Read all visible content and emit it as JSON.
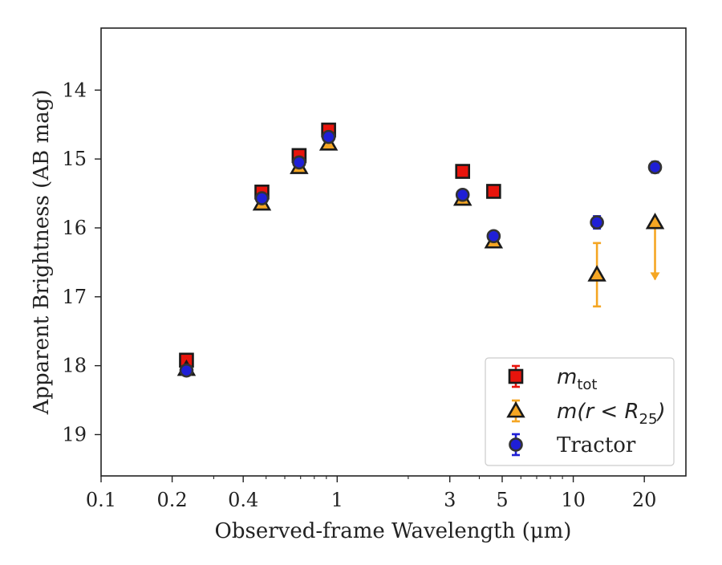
{
  "chart_data": {
    "type": "scatter",
    "title": "",
    "xlabel": "Observed-frame Wavelength (μm)",
    "ylabel": "Apparent Brightness (AB mag)",
    "x_scale": "log",
    "xlim": [
      0.1,
      30
    ],
    "ylim": [
      19.6,
      13.1
    ],
    "y_inverted": true,
    "x_ticks": [
      0.1,
      0.2,
      0.4,
      1,
      3,
      5,
      10,
      20
    ],
    "x_tick_labels": [
      "0.1",
      "0.2",
      "0.4",
      "1",
      "3",
      "5",
      "10",
      "20"
    ],
    "y_ticks": [
      14,
      15,
      16,
      17,
      18,
      19
    ],
    "y_tick_labels": [
      "14",
      "15",
      "16",
      "17",
      "18",
      "19"
    ],
    "grid": false,
    "legend_position": "lower-right",
    "series": [
      {
        "name": "m_tot",
        "legend_main": "m",
        "legend_sub": "tot",
        "marker": "square",
        "color": "#e8140c",
        "edge_color": "#1a1a1a",
        "errorbar_color": "#e8140c",
        "points": [
          {
            "x": 0.23,
            "y": 17.92,
            "err": 0.05
          },
          {
            "x": 0.48,
            "y": 15.48,
            "err": 0.04
          },
          {
            "x": 0.69,
            "y": 14.95,
            "err": 0.04
          },
          {
            "x": 0.92,
            "y": 14.58,
            "err": 0.04
          },
          {
            "x": 3.4,
            "y": 15.18,
            "err": 0.04
          },
          {
            "x": 4.6,
            "y": 15.47,
            "err": 0.04
          }
        ]
      },
      {
        "name": "m(r < R_25)",
        "legend_main": "m(r < R",
        "legend_sub": "25",
        "legend_tail": ")",
        "marker": "triangle",
        "color": "#f5a623",
        "edge_color": "#1a1a1a",
        "errorbar_color": "#f5a623",
        "points": [
          {
            "x": 0.23,
            "y": 18.05,
            "err": 0.04
          },
          {
            "x": 0.48,
            "y": 15.65,
            "err": 0.03
          },
          {
            "x": 0.69,
            "y": 15.12,
            "err": 0.03
          },
          {
            "x": 0.92,
            "y": 14.78,
            "err": 0.03
          },
          {
            "x": 3.4,
            "y": 15.58,
            "err": 0.03
          },
          {
            "x": 4.6,
            "y": 16.2,
            "err": 0.03
          },
          {
            "x": 12.6,
            "y": 16.68,
            "err": 0.46
          },
          {
            "x": 22.2,
            "y": 15.92,
            "upper_limit": true,
            "arrow_to": 16.75
          }
        ]
      },
      {
        "name": "Tractor",
        "marker": "circle",
        "color": "#1f1fd6",
        "edge_color": "#333333",
        "errorbar_color": "#1f1fd6",
        "points": [
          {
            "x": 0.23,
            "y": 18.07,
            "err": 0.05
          },
          {
            "x": 0.48,
            "y": 15.57,
            "err": 0.04
          },
          {
            "x": 0.69,
            "y": 15.05,
            "err": 0.04
          },
          {
            "x": 0.92,
            "y": 14.68,
            "err": 0.04
          },
          {
            "x": 3.4,
            "y": 15.52,
            "err": 0.07
          },
          {
            "x": 4.6,
            "y": 16.12,
            "err": 0.07
          },
          {
            "x": 12.6,
            "y": 15.92,
            "err": 0.09
          },
          {
            "x": 22.2,
            "y": 15.12,
            "err": 0.08
          }
        ]
      }
    ]
  }
}
